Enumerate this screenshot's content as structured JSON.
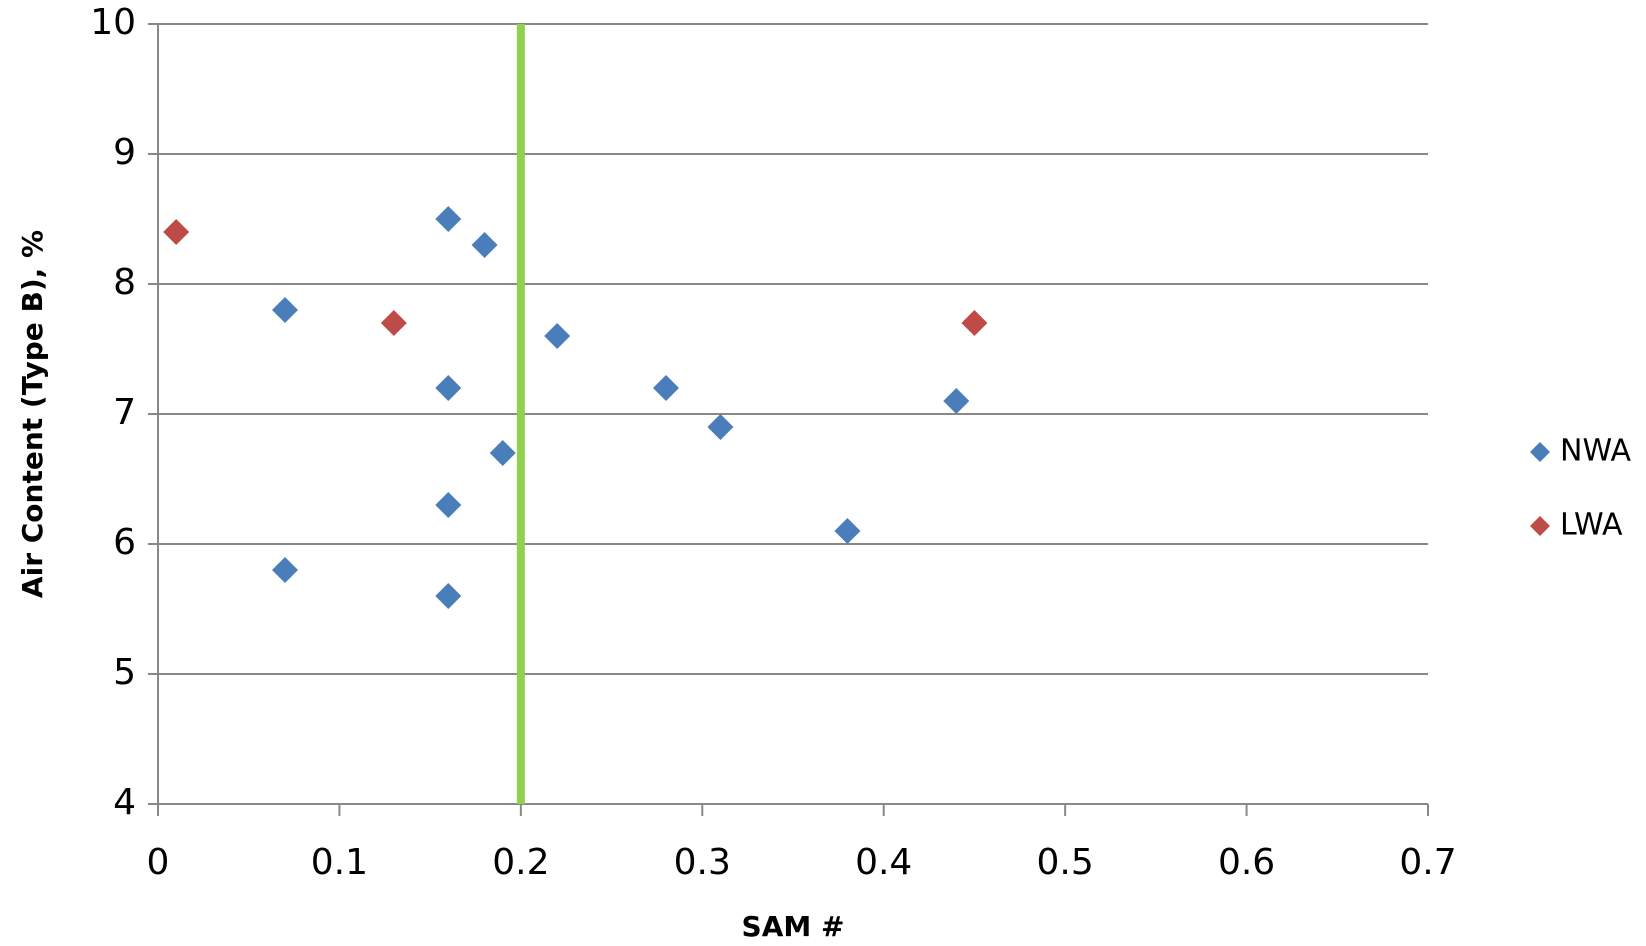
{
  "chart_data": {
    "type": "scatter",
    "x_label": "SAM #",
    "y_label": "Air Content (Type B), %",
    "xlim": [
      0,
      0.7
    ],
    "xticks": [
      0,
      0.1,
      0.2,
      0.3,
      0.4,
      0.5,
      0.6,
      0.7
    ],
    "ylim": [
      4,
      10
    ],
    "yticks": [
      4,
      5,
      6,
      7,
      8,
      9,
      10
    ],
    "grid": true,
    "legend": "right",
    "reference_line": {
      "x": 0.2,
      "color": "#92d050"
    },
    "series": [
      {
        "name": "NWA",
        "color": "#4a7ebb",
        "x": [
          0.07,
          0.07,
          0.16,
          0.18,
          0.16,
          0.19,
          0.16,
          0.16,
          0.22,
          0.28,
          0.31,
          0.38,
          0.44
        ],
        "values": [
          7.8,
          5.8,
          8.5,
          8.3,
          7.2,
          6.7,
          6.3,
          5.6,
          7.6,
          7.2,
          6.9,
          6.1,
          7.1
        ]
      },
      {
        "name": "LWA",
        "color": "#be4b48",
        "x": [
          0.01,
          0.13,
          0.45
        ],
        "values": [
          8.4,
          7.7,
          7.7
        ]
      }
    ]
  }
}
